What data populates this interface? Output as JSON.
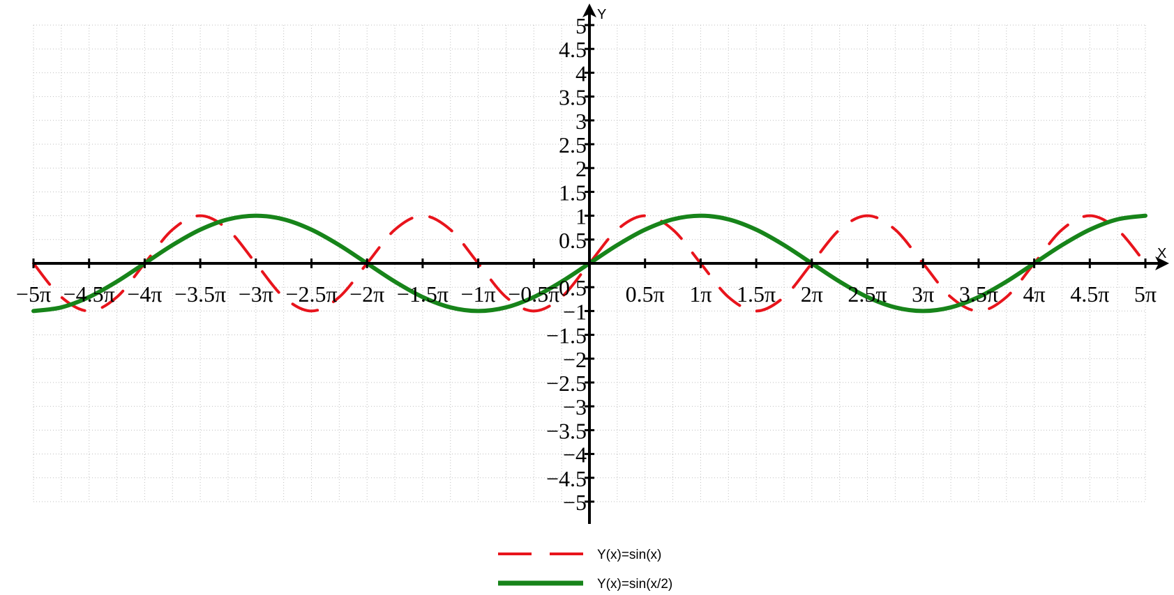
{
  "chart_data": {
    "type": "line",
    "xlabel": "X",
    "ylabel": "Y",
    "x_unit": "π",
    "xlim": [
      -5,
      5
    ],
    "ylim": [
      -5,
      5
    ],
    "grid": true,
    "legend_position": "bottom-center",
    "x_tick_values": [
      -5,
      -4.5,
      -4,
      -3.5,
      -3,
      -2.5,
      -2,
      -1.5,
      -1,
      -0.5,
      0.5,
      1,
      1.5,
      2,
      2.5,
      3,
      3.5,
      4,
      4.5,
      5
    ],
    "x_tick_labels": [
      "−5π",
      "−4.5π",
      "−4π",
      "−3.5π",
      "−3π",
      "−2.5π",
      "−2π",
      "−1.5π",
      "−1π",
      "−0.5π",
      "0.5π",
      "1π",
      "1.5π",
      "2π",
      "2.5π",
      "3π",
      "3.5π",
      "4π",
      "4.5π",
      "5π"
    ],
    "y_tick_values": [
      5,
      4.5,
      4,
      3.5,
      3,
      2.5,
      2,
      1.5,
      1,
      0.5,
      -0.5,
      -1,
      -1.5,
      -2,
      -2.5,
      -3,
      -3.5,
      -4,
      -4.5,
      -5
    ],
    "y_tick_labels": [
      "5",
      "4.5",
      "4",
      "3.5",
      "3",
      "2.5",
      "2",
      "1.5",
      "1",
      "0.5",
      "−0.5",
      "−1",
      "−1.5",
      "−2",
      "−2.5",
      "−3",
      "−3.5",
      "−4",
      "−4.5",
      "−5"
    ],
    "series": [
      {
        "name": "Y(x)=sin(x)",
        "color": "#e8141c",
        "style": "dashed",
        "x": [
          -5,
          -4.75,
          -4.5,
          -4.25,
          -4,
          -3.75,
          -3.5,
          -3.25,
          -3,
          -2.75,
          -2.5,
          -2.25,
          -2,
          -1.75,
          -1.5,
          -1.25,
          -1,
          -0.75,
          -0.5,
          -0.25,
          0,
          0.25,
          0.5,
          0.75,
          1,
          1.25,
          1.5,
          1.75,
          2,
          2.25,
          2.5,
          2.75,
          3,
          3.25,
          3.5,
          3.75,
          4,
          4.25,
          4.5,
          4.75,
          5
        ],
        "y": [
          0,
          -0.707,
          -1,
          -0.707,
          0,
          0.707,
          1,
          0.707,
          0,
          -0.707,
          -1,
          -0.707,
          0,
          0.707,
          1,
          0.707,
          0,
          -0.707,
          -1,
          -0.707,
          0,
          0.707,
          1,
          0.707,
          0,
          -0.707,
          -1,
          -0.707,
          0,
          0.707,
          1,
          0.707,
          0,
          -0.707,
          -1,
          -0.707,
          0,
          0.707,
          1,
          0.707,
          0
        ]
      },
      {
        "name": "Y(x)=sin(x/2)",
        "color": "#17841a",
        "style": "solid",
        "x": [
          -5,
          -4.75,
          -4.5,
          -4.25,
          -4,
          -3.75,
          -3.5,
          -3.25,
          -3,
          -2.75,
          -2.5,
          -2.25,
          -2,
          -1.75,
          -1.5,
          -1.25,
          -1,
          -0.75,
          -0.5,
          -0.25,
          0,
          0.25,
          0.5,
          0.75,
          1,
          1.25,
          1.5,
          1.75,
          2,
          2.25,
          2.5,
          2.75,
          3,
          3.25,
          3.5,
          3.75,
          4,
          4.25,
          4.5,
          4.75,
          5
        ],
        "y": [
          -1,
          -0.924,
          -0.707,
          -0.383,
          0,
          0.383,
          0.707,
          0.924,
          1,
          0.924,
          0.707,
          0.383,
          0,
          -0.383,
          -0.707,
          -0.924,
          -1,
          -0.924,
          -0.707,
          -0.383,
          0,
          0.383,
          0.707,
          0.924,
          1,
          0.924,
          0.707,
          0.383,
          0,
          -0.383,
          -0.707,
          -0.924,
          -1,
          -0.924,
          -0.707,
          -0.383,
          0,
          0.383,
          0.707,
          0.924,
          1
        ]
      }
    ]
  }
}
